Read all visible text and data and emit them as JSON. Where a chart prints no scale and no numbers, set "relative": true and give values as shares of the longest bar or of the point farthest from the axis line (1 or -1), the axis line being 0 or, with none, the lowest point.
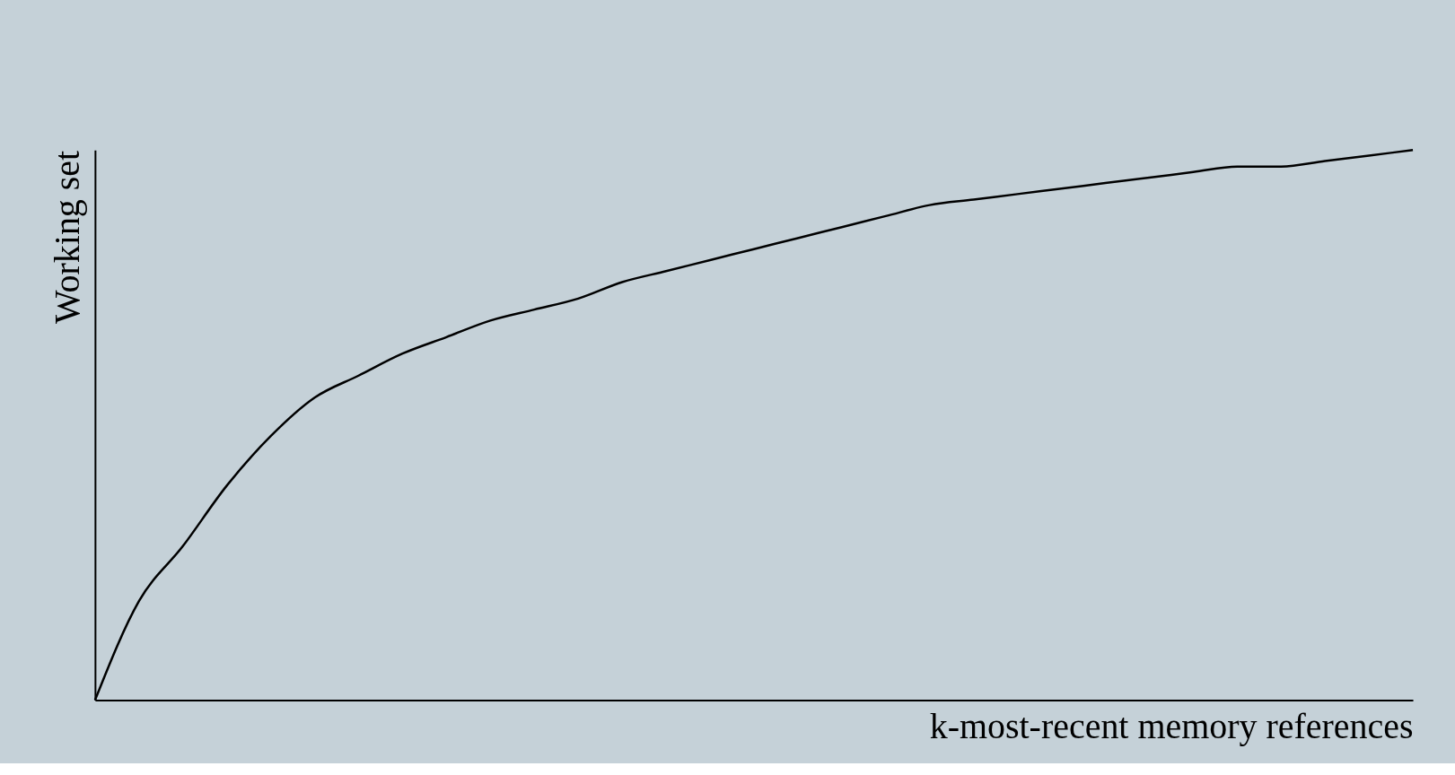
{
  "chart_data": {
    "type": "line",
    "relative": true,
    "xlabel": "k-most-recent memory references",
    "ylabel": "Working set",
    "categories": [
      null,
      null,
      null,
      null,
      null,
      null,
      null,
      null,
      null,
      null,
      null,
      null,
      null,
      null,
      null,
      null,
      null,
      null,
      null,
      null,
      null,
      null,
      null,
      null,
      null,
      null,
      null,
      null,
      null,
      null,
      null
    ],
    "series": [
      {
        "color": "#000000",
        "values": [
          0,
          0.18,
          0.28,
          0.39,
          0.48,
          0.55,
          0.59,
          0.63,
          0.66,
          0.69,
          0.71,
          0.73,
          0.76,
          0.78,
          0.8,
          0.82,
          0.84,
          0.86,
          0.88,
          0.9,
          0.91,
          0.92,
          0.93,
          0.94,
          0.95,
          0.96,
          0.97,
          0.97,
          0.98,
          0.99,
          1.0
        ]
      }
    ],
    "grid": false,
    "marker": "none",
    "line_style": "solid"
  }
}
